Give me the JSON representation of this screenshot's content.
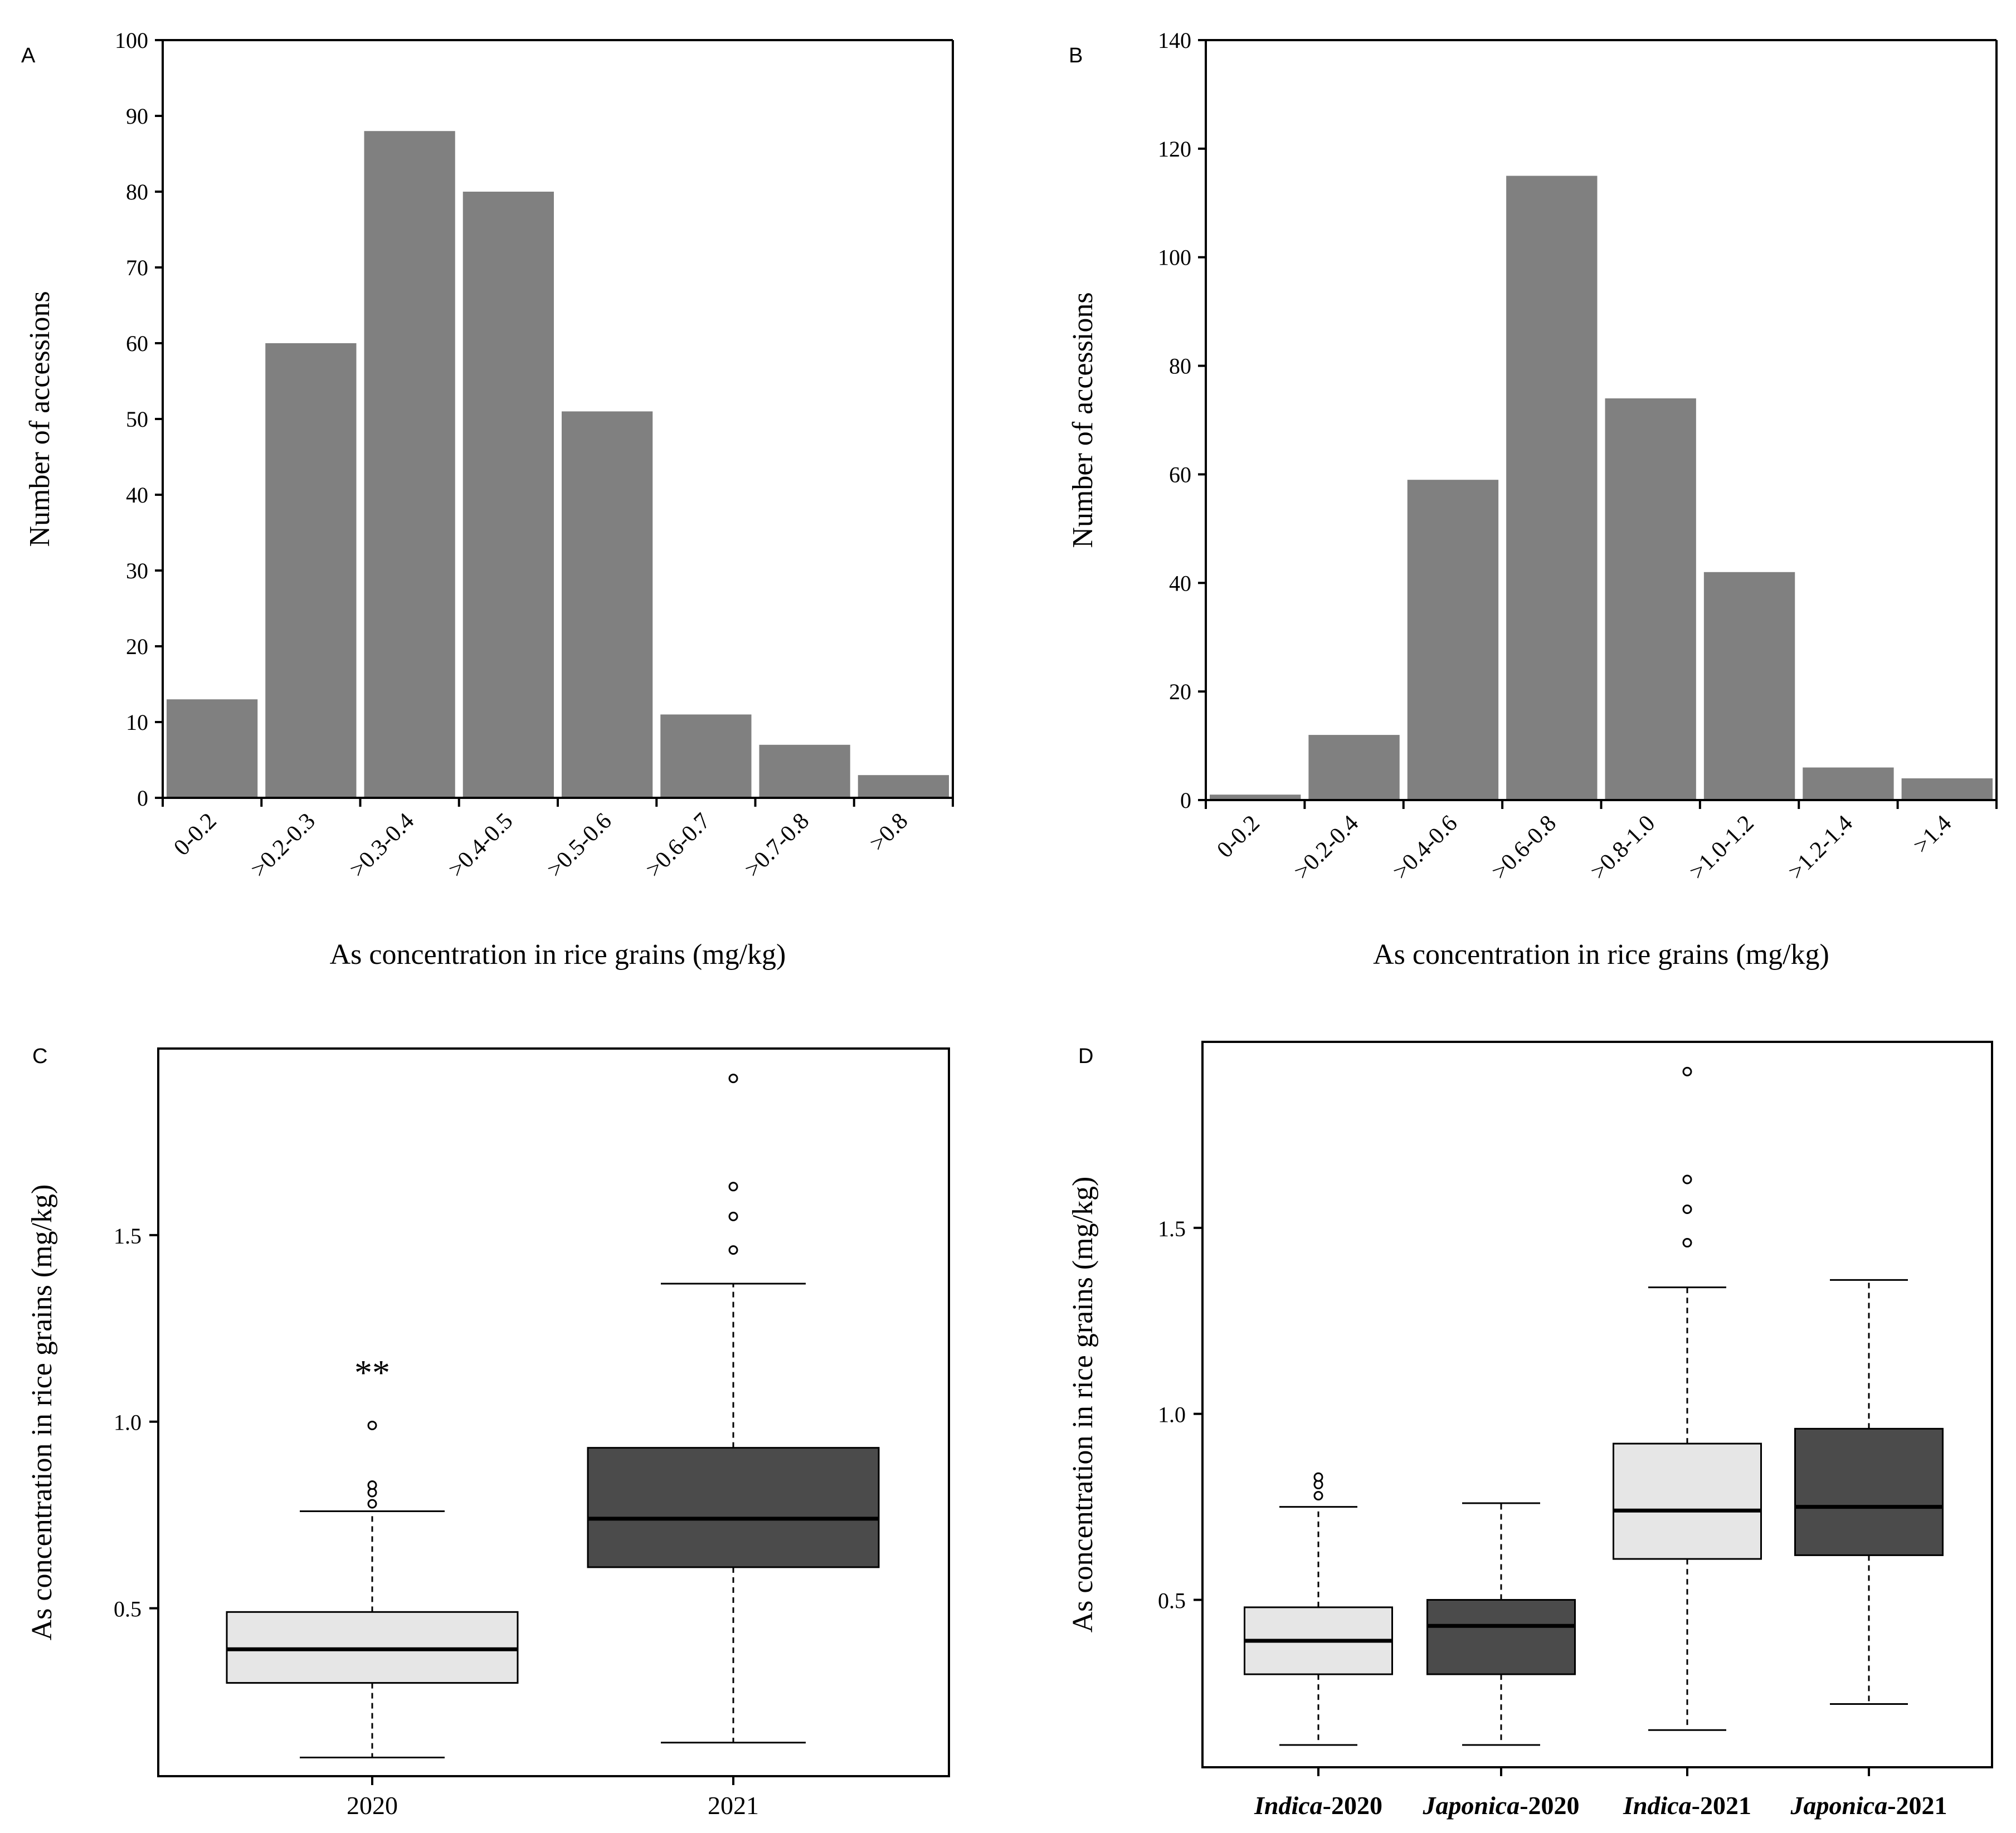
{
  "colors": {
    "bar": "#808080",
    "box_light": "#e6e6e6",
    "box_dark": "#4b4b4b"
  },
  "chart_data": [
    {
      "panel": "A",
      "type": "bar",
      "categories": [
        "0-0.2",
        ">0.2-0.3",
        ">0.3-0.4",
        ">0.4-0.5",
        ">0.5-0.6",
        ">0.6-0.7",
        ">0.7-0.8",
        ">0.8"
      ],
      "values": [
        13,
        60,
        88,
        80,
        51,
        11,
        7,
        3
      ],
      "xlabel": "As concentration in rice grains (mg/kg)",
      "ylabel": "Number of accessions",
      "ylim": [
        0,
        100
      ],
      "yticks": [
        0,
        10,
        20,
        30,
        40,
        50,
        60,
        70,
        80,
        90,
        100
      ],
      "grid": false
    },
    {
      "panel": "B",
      "type": "bar",
      "categories": [
        "0-0.2",
        ">0.2-0.4",
        ">0.4-0.6",
        ">0.6-0.8",
        ">0.8-1.0",
        ">1.0-1.2",
        ">1.2-1.4",
        ">1.4"
      ],
      "values": [
        1,
        12,
        59,
        115,
        74,
        42,
        6,
        4
      ],
      "xlabel": "As concentration in rice grains (mg/kg)",
      "ylabel": "Number of accessions",
      "ylim": [
        0,
        140
      ],
      "yticks": [
        0,
        20,
        40,
        60,
        80,
        100,
        120,
        140
      ],
      "grid": false
    },
    {
      "panel": "C",
      "type": "box",
      "categories": [
        "2020",
        "2021"
      ],
      "boxes": [
        {
          "min": 0.1,
          "q1": 0.3,
          "median": 0.39,
          "q3": 0.49,
          "max": 0.76,
          "outliers": [
            0.78,
            0.81,
            0.83,
            0.99
          ],
          "fill": "light"
        },
        {
          "min": 0.14,
          "q1": 0.61,
          "median": 0.74,
          "q3": 0.93,
          "max": 1.37,
          "outliers": [
            1.46,
            1.55,
            1.63,
            1.92
          ],
          "fill": "dark"
        }
      ],
      "ylabel": "As concentration in rice grains (mg/kg)",
      "ylim": [
        0.05,
        2.0
      ],
      "yticks": [
        0.5,
        1.0,
        1.5
      ],
      "ytick_labels": [
        "0.5",
        "1.0",
        "1.5"
      ],
      "annotation": "**",
      "annotation_y": 1.1,
      "grid": false
    },
    {
      "panel": "D",
      "type": "box",
      "categories": [
        "Indica-2020",
        "Japonica-2020",
        "Indica-2021",
        "Japonica-2021"
      ],
      "category_parts": [
        {
          "italic": "Indica",
          "rest": "-2020"
        },
        {
          "italic": "Japonica",
          "rest": "-2020"
        },
        {
          "italic": "Indica",
          "rest": "-2021"
        },
        {
          "italic": "Japonica",
          "rest": "-2021"
        }
      ],
      "boxes": [
        {
          "min": 0.11,
          "q1": 0.3,
          "median": 0.39,
          "q3": 0.48,
          "max": 0.75,
          "outliers": [
            0.78,
            0.81,
            0.83
          ],
          "fill": "light"
        },
        {
          "min": 0.11,
          "q1": 0.3,
          "median": 0.43,
          "q3": 0.5,
          "max": 0.76,
          "outliers": [],
          "fill": "dark"
        },
        {
          "min": 0.15,
          "q1": 0.61,
          "median": 0.74,
          "q3": 0.92,
          "max": 1.34,
          "outliers": [
            1.46,
            1.55,
            1.63,
            1.92
          ],
          "fill": "light"
        },
        {
          "min": 0.22,
          "q1": 0.62,
          "median": 0.75,
          "q3": 0.96,
          "max": 1.36,
          "outliers": [],
          "fill": "dark"
        }
      ],
      "ylabel": "As concentration in rice grains (mg/kg)",
      "ylim": [
        0.05,
        2.0
      ],
      "yticks": [
        0.5,
        1.0,
        1.5
      ],
      "ytick_labels": [
        "0.5",
        "1.0",
        "1.5"
      ],
      "grid": false
    }
  ]
}
